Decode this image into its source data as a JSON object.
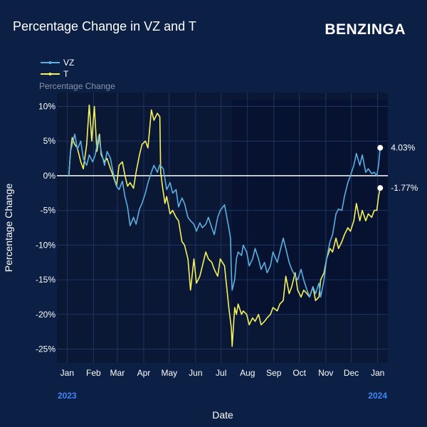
{
  "header": {
    "title": "Percentage Change in VZ and T",
    "brand": "BENZINGA"
  },
  "colors": {
    "background": "#0c1f45",
    "plot_bg": "#0a1735",
    "grid": "#1e3462",
    "zero_line": "#ffffff",
    "vz": "#5ab0e0",
    "t": "#f6f25e",
    "year_label": "#3d87f5",
    "axis_text": "#ffffff",
    "legend_subtitle": "#8a94a8"
  },
  "chart_data": {
    "type": "line",
    "title": "Percentage Change in VZ and T",
    "xlabel": "Date",
    "ylabel": "Percentage Change",
    "legend_title": "Percentage Change",
    "legend_position": "top-left",
    "grid": true,
    "ylim": [
      -27,
      12
    ],
    "y_ticks": [
      10,
      5,
      0,
      -5,
      -10,
      -15,
      -20,
      -25
    ],
    "y_tick_labels": [
      "10%",
      "5%",
      "0%",
      "-5%",
      "-10%",
      "-15%",
      "-20%",
      "-25%"
    ],
    "x_range": [
      "2022-12-20",
      "2024-01-13"
    ],
    "x_ticks": [
      "2023-01-01",
      "2023-02-01",
      "2023-03-01",
      "2023-04-01",
      "2023-05-01",
      "2023-06-01",
      "2023-07-01",
      "2023-08-01",
      "2023-09-01",
      "2023-10-01",
      "2023-11-01",
      "2023-12-01",
      "2024-01-01"
    ],
    "x_tick_labels": [
      "Jan",
      "Feb",
      "Mar",
      "Apr",
      "May",
      "Jun",
      "Jul",
      "Aug",
      "Sep",
      "Oct",
      "Nov",
      "Dec",
      "Jan"
    ],
    "year_labels": [
      {
        "date": "2023-01-01",
        "text": "2023"
      },
      {
        "date": "2024-01-01",
        "text": "2024"
      }
    ],
    "series": [
      {
        "name": "VZ",
        "end_label": "4.03%",
        "points": [
          [
            "2023-01-03",
            0
          ],
          [
            "2023-01-05",
            3.5
          ],
          [
            "2023-01-07",
            4.5
          ],
          [
            "2023-01-10",
            6.0
          ],
          [
            "2023-01-13",
            3.8
          ],
          [
            "2023-01-17",
            5.0
          ],
          [
            "2023-01-20",
            2.5
          ],
          [
            "2023-01-24",
            1.5
          ],
          [
            "2023-01-27",
            3.0
          ],
          [
            "2023-01-31",
            2.0
          ],
          [
            "2023-02-03",
            3.0
          ],
          [
            "2023-02-07",
            5.8
          ],
          [
            "2023-02-10",
            3.5
          ],
          [
            "2023-02-14",
            1.5
          ],
          [
            "2023-02-17",
            3.5
          ],
          [
            "2023-02-21",
            2.5
          ],
          [
            "2023-02-24",
            0.5
          ],
          [
            "2023-02-28",
            -1.5
          ],
          [
            "2023-03-03",
            -2.0
          ],
          [
            "2023-03-07",
            -0.8
          ],
          [
            "2023-03-10",
            -3.0
          ],
          [
            "2023-03-13",
            -4.5
          ],
          [
            "2023-03-16",
            -7.2
          ],
          [
            "2023-03-20",
            -6.0
          ],
          [
            "2023-03-23",
            -7.0
          ],
          [
            "2023-03-27",
            -4.8
          ],
          [
            "2023-03-30",
            -4.0
          ],
          [
            "2023-04-03",
            -2.5
          ],
          [
            "2023-04-06",
            -1.0
          ],
          [
            "2023-04-10",
            0.5
          ],
          [
            "2023-04-13",
            1.5
          ],
          [
            "2023-04-17",
            0.5
          ],
          [
            "2023-04-20",
            1.6
          ],
          [
            "2023-04-24",
            1.0
          ],
          [
            "2023-04-26",
            -0.5
          ],
          [
            "2023-04-28",
            -2.0
          ],
          [
            "2023-05-02",
            -1.0
          ],
          [
            "2023-05-05",
            -2.5
          ],
          [
            "2023-05-09",
            -2.0
          ],
          [
            "2023-05-12",
            -4.5
          ],
          [
            "2023-05-16",
            -3.2
          ],
          [
            "2023-05-19",
            -4.0
          ],
          [
            "2023-05-23",
            -6.0
          ],
          [
            "2023-05-26",
            -6.5
          ],
          [
            "2023-05-30",
            -7.0
          ],
          [
            "2023-06-02",
            -8.0
          ],
          [
            "2023-06-06",
            -6.8
          ],
          [
            "2023-06-09",
            -7.5
          ],
          [
            "2023-06-13",
            -7.0
          ],
          [
            "2023-06-16",
            -6.0
          ],
          [
            "2023-06-20",
            -7.5
          ],
          [
            "2023-06-23",
            -8.5
          ],
          [
            "2023-06-27",
            -6.0
          ],
          [
            "2023-06-30",
            -5.0
          ],
          [
            "2023-07-05",
            -4.2
          ],
          [
            "2023-07-07",
            -5.5
          ],
          [
            "2023-07-10",
            -7.5
          ],
          [
            "2023-07-12",
            -9.0
          ],
          [
            "2023-07-13",
            -14.0
          ],
          [
            "2023-07-14",
            -16.5
          ],
          [
            "2023-07-17",
            -15.0
          ],
          [
            "2023-07-19",
            -12.0
          ],
          [
            "2023-07-21",
            -11.0
          ],
          [
            "2023-07-25",
            -11.5
          ],
          [
            "2023-07-27",
            -10.0
          ],
          [
            "2023-07-31",
            -11.0
          ],
          [
            "2023-08-03",
            -13.0
          ],
          [
            "2023-08-07",
            -12.0
          ],
          [
            "2023-08-10",
            -10.5
          ],
          [
            "2023-08-14",
            -12.0
          ],
          [
            "2023-08-17",
            -13.5
          ],
          [
            "2023-08-21",
            -12.5
          ],
          [
            "2023-08-24",
            -14.0
          ],
          [
            "2023-08-28",
            -13.0
          ],
          [
            "2023-08-31",
            -11.0
          ],
          [
            "2023-09-05",
            -12.5
          ],
          [
            "2023-09-08",
            -11.0
          ],
          [
            "2023-09-12",
            -9.0
          ],
          [
            "2023-09-15",
            -10.5
          ],
          [
            "2023-09-19",
            -12.5
          ],
          [
            "2023-09-22",
            -13.5
          ],
          [
            "2023-09-26",
            -14.5
          ],
          [
            "2023-09-29",
            -15.0
          ],
          [
            "2023-10-03",
            -13.5
          ],
          [
            "2023-10-06",
            -15.0
          ],
          [
            "2023-10-10",
            -16.5
          ],
          [
            "2023-10-13",
            -17.5
          ],
          [
            "2023-10-17",
            -16.0
          ],
          [
            "2023-10-20",
            -17.0
          ],
          [
            "2023-10-24",
            -15.5
          ],
          [
            "2023-10-26",
            -17.5
          ],
          [
            "2023-10-30",
            -15.0
          ],
          [
            "2023-11-02",
            -12.0
          ],
          [
            "2023-11-06",
            -9.5
          ],
          [
            "2023-11-09",
            -8.5
          ],
          [
            "2023-11-13",
            -5.5
          ],
          [
            "2023-11-16",
            -4.8
          ],
          [
            "2023-11-20",
            -5.0
          ],
          [
            "2023-11-23",
            -3.0
          ],
          [
            "2023-11-27",
            -1.0
          ],
          [
            "2023-11-30",
            0
          ],
          [
            "2023-12-04",
            1.5
          ],
          [
            "2023-12-07",
            3.2
          ],
          [
            "2023-12-11",
            1.5
          ],
          [
            "2023-12-14",
            3.0
          ],
          [
            "2023-12-18",
            0.5
          ],
          [
            "2023-12-21",
            1.0
          ],
          [
            "2023-12-25",
            0.3
          ],
          [
            "2023-12-28",
            0.5
          ],
          [
            "2023-12-31",
            0
          ],
          [
            "2024-01-02",
            1.5
          ],
          [
            "2024-01-04",
            4.03
          ]
        ]
      },
      {
        "name": "T",
        "end_label": "-1.77%",
        "points": [
          [
            "2023-01-03",
            0
          ],
          [
            "2023-01-05",
            3.5
          ],
          [
            "2023-01-07",
            5.5
          ],
          [
            "2023-01-10",
            4.5
          ],
          [
            "2023-01-13",
            4.0
          ],
          [
            "2023-01-17",
            2.0
          ],
          [
            "2023-01-20",
            1.0
          ],
          [
            "2023-01-24",
            4.5
          ],
          [
            "2023-01-27",
            10.2
          ],
          [
            "2023-01-30",
            5.0
          ],
          [
            "2023-02-02",
            10.0
          ],
          [
            "2023-02-05",
            3.5
          ],
          [
            "2023-02-08",
            6.0
          ],
          [
            "2023-02-10",
            3.0
          ],
          [
            "2023-02-14",
            2.0
          ],
          [
            "2023-02-17",
            2.5
          ],
          [
            "2023-02-21",
            1.0
          ],
          [
            "2023-02-24",
            0
          ],
          [
            "2023-02-28",
            -1.5
          ],
          [
            "2023-03-03",
            1.5
          ],
          [
            "2023-03-07",
            2.0
          ],
          [
            "2023-03-10",
            0
          ],
          [
            "2023-03-13",
            -1.5
          ],
          [
            "2023-03-16",
            -1.0
          ],
          [
            "2023-03-20",
            -1.8
          ],
          [
            "2023-03-23",
            0.5
          ],
          [
            "2023-03-27",
            3.0
          ],
          [
            "2023-03-30",
            4.5
          ],
          [
            "2023-04-03",
            5.0
          ],
          [
            "2023-04-06",
            4.0
          ],
          [
            "2023-04-10",
            9.5
          ],
          [
            "2023-04-13",
            8.0
          ],
          [
            "2023-04-17",
            9.0
          ],
          [
            "2023-04-20",
            8.5
          ],
          [
            "2023-04-21",
            0.5
          ],
          [
            "2023-04-23",
            -1.5
          ],
          [
            "2023-04-26",
            -4.0
          ],
          [
            "2023-04-28",
            -3.0
          ],
          [
            "2023-05-02",
            -5.5
          ],
          [
            "2023-05-05",
            -5.0
          ],
          [
            "2023-05-09",
            -6.0
          ],
          [
            "2023-05-12",
            -6.5
          ],
          [
            "2023-05-16",
            -9.5
          ],
          [
            "2023-05-19",
            -10.0
          ],
          [
            "2023-05-23",
            -12.0
          ],
          [
            "2023-05-26",
            -16.5
          ],
          [
            "2023-05-30",
            -12.0
          ],
          [
            "2023-06-02",
            -15.5
          ],
          [
            "2023-06-06",
            -14.5
          ],
          [
            "2023-06-09",
            -13.0
          ],
          [
            "2023-06-13",
            -11.0
          ],
          [
            "2023-06-16",
            -12.0
          ],
          [
            "2023-06-20",
            -12.5
          ],
          [
            "2023-06-23",
            -13.5
          ],
          [
            "2023-06-27",
            -14.5
          ],
          [
            "2023-06-30",
            -12.0
          ],
          [
            "2023-07-05",
            -13.0
          ],
          [
            "2023-07-10",
            -19.0
          ],
          [
            "2023-07-13",
            -22.0
          ],
          [
            "2023-07-14",
            -24.6
          ],
          [
            "2023-07-17",
            -19.0
          ],
          [
            "2023-07-19",
            -20.0
          ],
          [
            "2023-07-21",
            -18.5
          ],
          [
            "2023-07-25",
            -20.0
          ],
          [
            "2023-07-27",
            -19.5
          ],
          [
            "2023-07-31",
            -20.0
          ],
          [
            "2023-08-03",
            -21.5
          ],
          [
            "2023-08-07",
            -20.5
          ],
          [
            "2023-08-10",
            -21.0
          ],
          [
            "2023-08-14",
            -20.0
          ],
          [
            "2023-08-17",
            -21.5
          ],
          [
            "2023-08-21",
            -21.0
          ],
          [
            "2023-08-24",
            -20.5
          ],
          [
            "2023-08-28",
            -20.0
          ],
          [
            "2023-08-31",
            -19.0
          ],
          [
            "2023-09-05",
            -19.5
          ],
          [
            "2023-09-08",
            -18.5
          ],
          [
            "2023-09-12",
            -18.0
          ],
          [
            "2023-09-15",
            -14.5
          ],
          [
            "2023-09-19",
            -17.0
          ],
          [
            "2023-09-22",
            -16.0
          ],
          [
            "2023-09-26",
            -14.0
          ],
          [
            "2023-09-29",
            -16.5
          ],
          [
            "2023-10-03",
            -17.5
          ],
          [
            "2023-10-06",
            -16.5
          ],
          [
            "2023-10-10",
            -17.0
          ],
          [
            "2023-10-13",
            -17.5
          ],
          [
            "2023-10-17",
            -16.0
          ],
          [
            "2023-10-20",
            -18.0
          ],
          [
            "2023-10-24",
            -17.5
          ],
          [
            "2023-10-26",
            -15.0
          ],
          [
            "2023-10-30",
            -14.0
          ],
          [
            "2023-11-02",
            -12.0
          ],
          [
            "2023-11-06",
            -10.5
          ],
          [
            "2023-11-09",
            -11.0
          ],
          [
            "2023-11-13",
            -9.0
          ],
          [
            "2023-11-16",
            -10.5
          ],
          [
            "2023-11-20",
            -9.5
          ],
          [
            "2023-11-23",
            -8.5
          ],
          [
            "2023-11-27",
            -7.5
          ],
          [
            "2023-11-30",
            -8.0
          ],
          [
            "2023-12-04",
            -6.5
          ],
          [
            "2023-12-07",
            -4.0
          ],
          [
            "2023-12-11",
            -6.5
          ],
          [
            "2023-12-14",
            -5.0
          ],
          [
            "2023-12-18",
            -6.5
          ],
          [
            "2023-12-21",
            -5.5
          ],
          [
            "2023-12-25",
            -6.0
          ],
          [
            "2023-12-28",
            -5.0
          ],
          [
            "2023-12-31",
            -5.0
          ],
          [
            "2024-01-02",
            -3.0
          ],
          [
            "2024-01-04",
            -1.77
          ]
        ]
      }
    ]
  }
}
